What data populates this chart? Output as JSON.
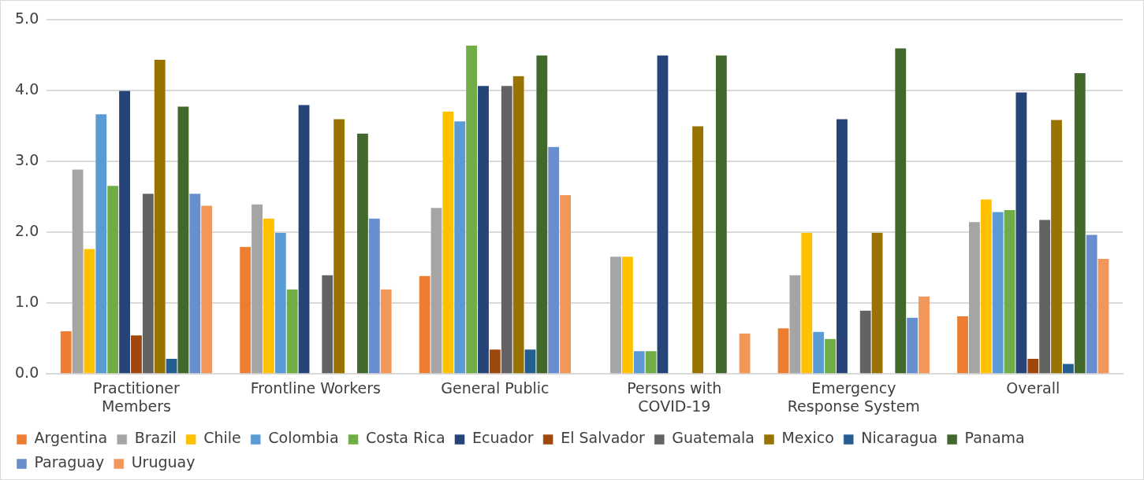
{
  "chart_data": {
    "type": "bar",
    "categories": [
      "Practitioner Members",
      "Frontline Workers",
      "General Public",
      "Persons with COVID-19",
      "Emergency Response System",
      "Overall"
    ],
    "ylim": [
      0,
      5
    ],
    "yticks": [
      {
        "value": 0,
        "label": "0.0"
      },
      {
        "value": 1,
        "label": "1.0"
      },
      {
        "value": 2,
        "label": "2.0"
      },
      {
        "value": 3,
        "label": "3.0"
      },
      {
        "value": 4,
        "label": "4.0"
      },
      {
        "value": 5,
        "label": "5.0"
      }
    ],
    "grid": "y",
    "legend": "bottom",
    "series": [
      {
        "name": "Argentina",
        "color": "#ed7d31",
        "values": [
          0.61,
          1.8,
          1.39,
          null,
          0.65,
          0.82
        ]
      },
      {
        "name": "Brazil",
        "color": "#a5a5a5",
        "values": [
          2.89,
          2.4,
          2.35,
          1.66,
          1.4,
          2.15
        ]
      },
      {
        "name": "Chile",
        "color": "#ffc000",
        "values": [
          1.77,
          2.2,
          3.71,
          1.66,
          2.0,
          2.47
        ]
      },
      {
        "name": "Colombia",
        "color": "#5b9bd5",
        "values": [
          3.67,
          2.0,
          3.57,
          0.33,
          0.6,
          2.29
        ]
      },
      {
        "name": "Costa Rica",
        "color": "#70ad47",
        "values": [
          2.66,
          1.2,
          4.64,
          0.33,
          0.5,
          2.32
        ]
      },
      {
        "name": "Ecuador",
        "color": "#264478",
        "values": [
          4.0,
          3.8,
          4.07,
          4.5,
          3.6,
          3.98
        ]
      },
      {
        "name": "El Salvador",
        "color": "#9e480e",
        "values": [
          0.55,
          null,
          0.35,
          null,
          null,
          0.22
        ]
      },
      {
        "name": "Guatemala",
        "color": "#636363",
        "values": [
          2.55,
          1.4,
          4.07,
          null,
          0.9,
          2.18
        ]
      },
      {
        "name": "Mexico",
        "color": "#997300",
        "values": [
          4.44,
          3.6,
          4.21,
          3.5,
          2.0,
          3.59
        ]
      },
      {
        "name": "Nicaragua",
        "color": "#255e91",
        "values": [
          0.22,
          null,
          0.35,
          null,
          null,
          0.15
        ]
      },
      {
        "name": "Panama",
        "color": "#43682b",
        "values": [
          3.78,
          3.4,
          4.5,
          4.5,
          4.6,
          4.25
        ]
      },
      {
        "name": "Paraguay",
        "color": "#698ed0",
        "values": [
          2.55,
          2.2,
          3.21,
          null,
          0.8,
          1.97
        ]
      },
      {
        "name": "Uruguay",
        "color": "#f1975a",
        "values": [
          2.38,
          1.2,
          2.53,
          0.58,
          1.1,
          1.63
        ]
      }
    ]
  }
}
